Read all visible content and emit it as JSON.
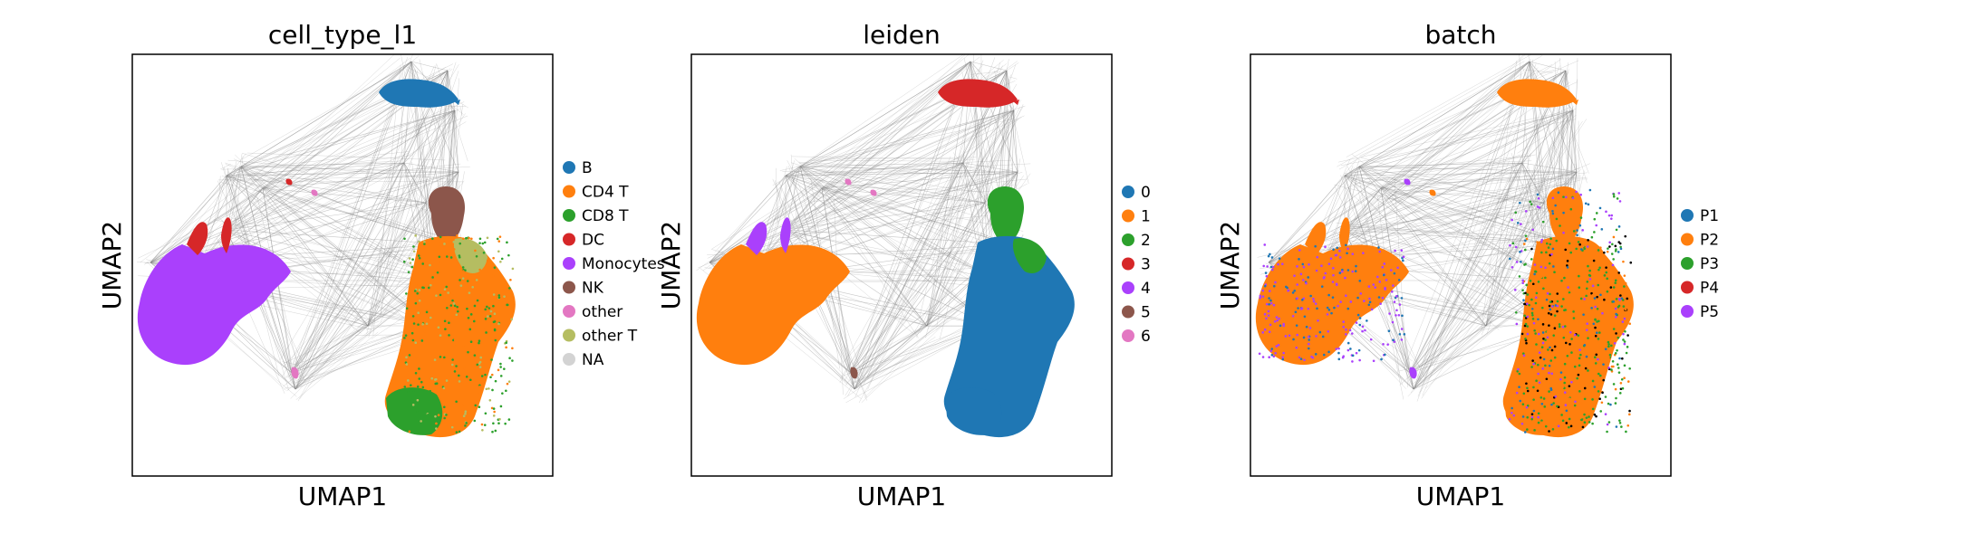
{
  "chart_data": [
    {
      "type": "scatter",
      "title": "cell_type_l1",
      "xlabel": "UMAP1",
      "ylabel": "UMAP2",
      "grid": false,
      "ticks": false,
      "paga_edges": true,
      "legend_position": "right",
      "categories": [
        "B",
        "CD4 T",
        "CD8 T",
        "DC",
        "Monocytes",
        "NK",
        "other",
        "other T",
        "NA"
      ],
      "colors": [
        "#1f77b4",
        "#ff7f0e",
        "#2ca02c",
        "#d62728",
        "#aa40fc",
        "#8c564b",
        "#e377c2",
        "#b5bd61",
        "#d3d3d3"
      ]
    },
    {
      "type": "scatter",
      "title": "leiden",
      "xlabel": "UMAP1",
      "ylabel": "UMAP2",
      "grid": false,
      "ticks": false,
      "paga_edges": true,
      "legend_position": "right",
      "categories": [
        "0",
        "1",
        "2",
        "3",
        "4",
        "5",
        "6"
      ],
      "colors": [
        "#1f77b4",
        "#ff7f0e",
        "#2ca02c",
        "#d62728",
        "#aa40fc",
        "#8c564b",
        "#e377c2"
      ]
    },
    {
      "type": "scatter",
      "title": "batch",
      "xlabel": "UMAP1",
      "ylabel": "UMAP2",
      "grid": false,
      "ticks": false,
      "paga_edges": true,
      "legend_position": "right",
      "categories": [
        "P1",
        "P2",
        "P3",
        "P4",
        "P5"
      ],
      "colors": [
        "#1f77b4",
        "#ff7f0e",
        "#2ca02c",
        "#d62728",
        "#aa40fc"
      ]
    }
  ]
}
